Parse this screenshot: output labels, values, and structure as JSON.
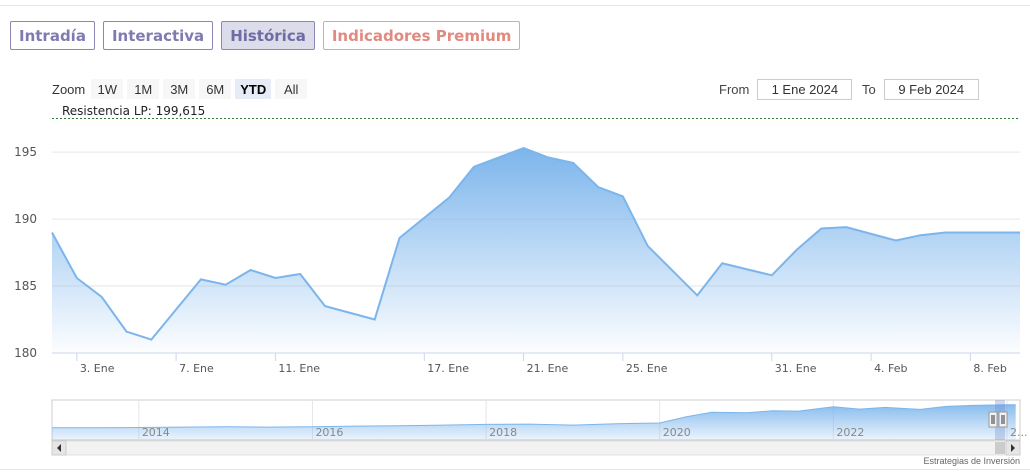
{
  "tabs": [
    {
      "label": "Intradía"
    },
    {
      "label": "Interactiva"
    },
    {
      "label": "Histórica"
    },
    {
      "label": "Indicadores Premium"
    }
  ],
  "zoom": {
    "label": "Zoom",
    "buttons": [
      "1W",
      "1M",
      "3M",
      "6M",
      "YTD",
      "All"
    ],
    "selected": "YTD"
  },
  "range": {
    "from_label": "From",
    "from_value": "1 Ene 2024",
    "to_label": "To",
    "to_value": "9 Feb 2024"
  },
  "footer": "Estrategias de Inversión",
  "colors": {
    "line": "#7cb5ec",
    "resistance": "#2e7d32",
    "tab_border": "#8b87b5",
    "premium": "#e08a80"
  },
  "chart_data": {
    "type": "area",
    "title": "",
    "xlabel": "",
    "ylabel": "",
    "ylim": [
      180,
      198
    ],
    "y_ticks": [
      180,
      185,
      190,
      195
    ],
    "x_ticks": [
      "3. Ene",
      "7. Ene",
      "11. Ene",
      "17. Ene",
      "21. Ene",
      "25. Ene",
      "31. Ene",
      "4. Feb",
      "8. Feb"
    ],
    "annotation": "Resistencia LP: 199,615",
    "resistance_value": 199.615,
    "grid": true,
    "legend": "none",
    "series": [
      {
        "x": [
          "2024-01-02",
          "2024-01-03",
          "2024-01-04",
          "2024-01-05",
          "2024-01-06",
          "2024-01-08",
          "2024-01-09",
          "2024-01-10",
          "2024-01-11",
          "2024-01-12",
          "2024-01-13",
          "2024-01-15",
          "2024-01-16",
          "2024-01-18",
          "2024-01-19",
          "2024-01-21",
          "2024-01-22",
          "2024-01-23",
          "2024-01-24",
          "2024-01-25",
          "2024-01-26",
          "2024-01-28",
          "2024-01-29",
          "2024-01-31",
          "2024-02-01",
          "2024-02-02",
          "2024-02-03",
          "2024-02-05",
          "2024-02-06",
          "2024-02-07",
          "2024-02-09"
        ],
        "values": [
          189.0,
          185.6,
          184.2,
          181.6,
          181.0,
          185.5,
          185.1,
          186.2,
          185.6,
          185.9,
          183.5,
          182.5,
          188.6,
          191.6,
          193.9,
          195.3,
          194.6,
          194.2,
          192.4,
          191.7,
          188.0,
          184.3,
          186.7,
          185.8,
          187.7,
          189.3,
          189.4,
          188.4,
          188.8,
          189.0,
          189.0
        ]
      }
    ],
    "navigator": {
      "x_ticks": [
        "2014",
        "2016",
        "2018",
        "2020",
        "2022",
        "2..."
      ],
      "years": [
        2013,
        2013.5,
        2014,
        2014.5,
        2015,
        2015.5,
        2016,
        2016.5,
        2017,
        2017.5,
        2018,
        2018.5,
        2019,
        2019.5,
        2020,
        2020.3,
        2020.6,
        2021,
        2021.3,
        2021.6,
        2022,
        2022.3,
        2022.6,
        2023,
        2023.3,
        2023.6,
        2024,
        2024.1
      ],
      "values": [
        30,
        30,
        31,
        32,
        33,
        32,
        33,
        35,
        36,
        38,
        40,
        41,
        38,
        42,
        44,
        62,
        76,
        74,
        80,
        79,
        92,
        85,
        90,
        84,
        93,
        96,
        98,
        98
      ]
    }
  }
}
